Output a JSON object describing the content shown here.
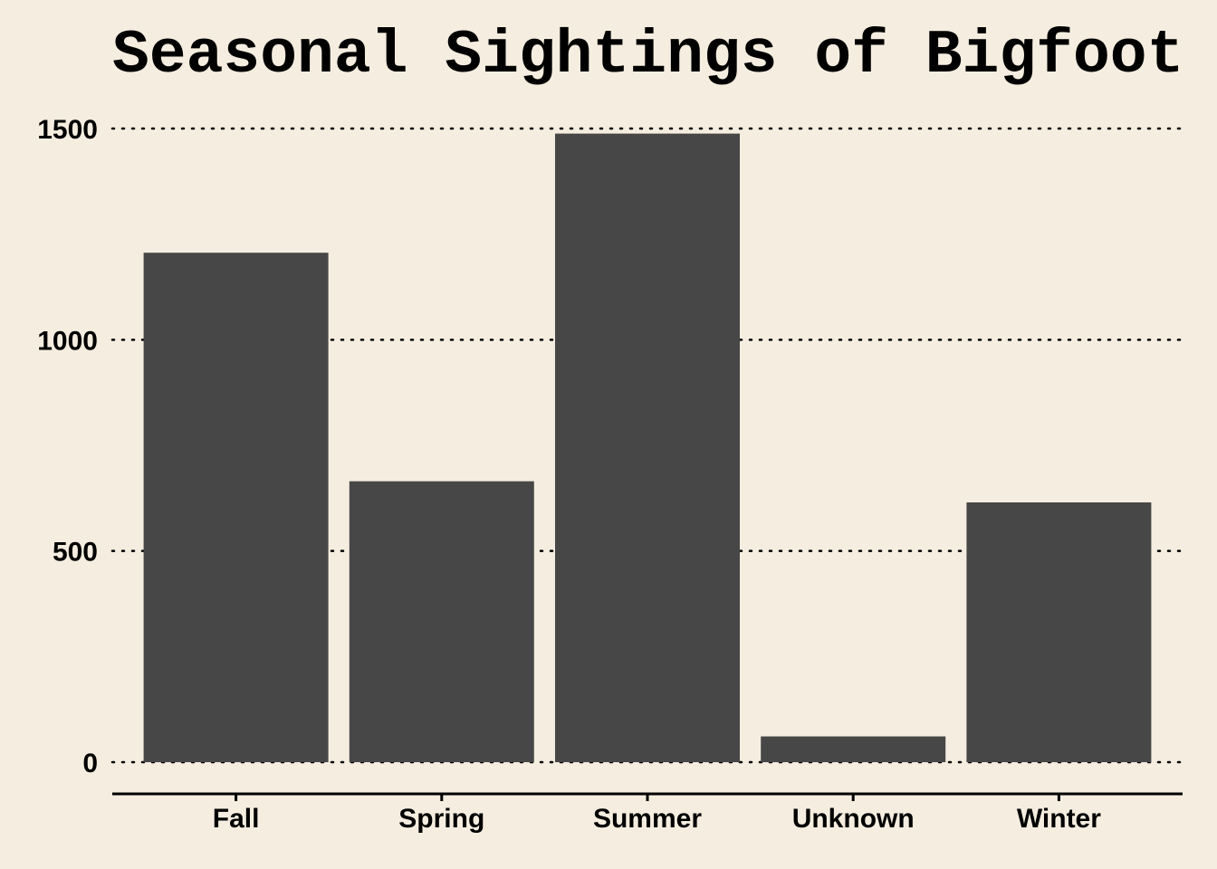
{
  "chart_data": {
    "type": "bar",
    "title": "Seasonal Sightings of Bigfoot",
    "categories": [
      "Fall",
      "Spring",
      "Summer",
      "Unknown",
      "Winter"
    ],
    "values": [
      1206,
      665,
      1488,
      61,
      615
    ],
    "xlabel": "",
    "ylabel": "",
    "ylim": [
      0,
      1500
    ],
    "yticks": [
      0,
      500,
      1000,
      1500
    ],
    "grid": "horizontal dotted",
    "legend": "none",
    "colors": {
      "background": "#f5eee0",
      "bar": "#474747",
      "grid": "#000000",
      "axis": "#000000",
      "text": "#000000"
    }
  }
}
